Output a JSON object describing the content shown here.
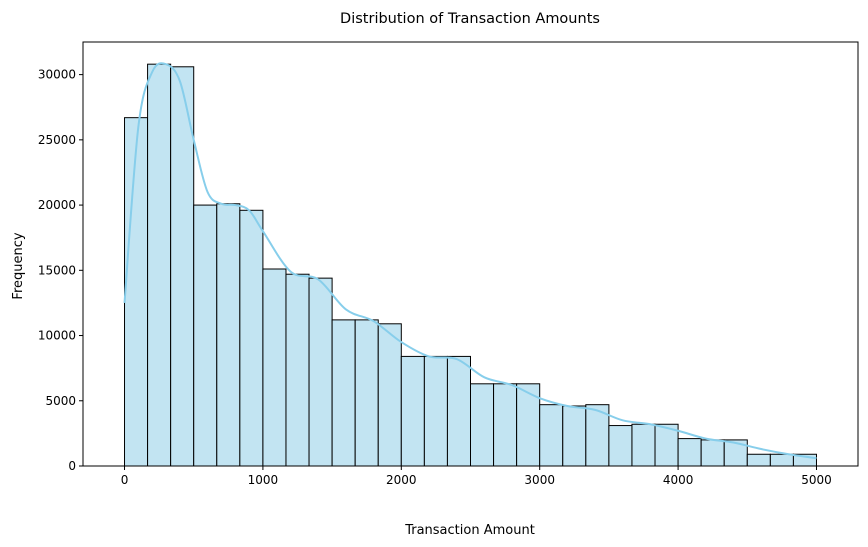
{
  "chart_data": {
    "type": "bar",
    "subtype": "histogram-with-kde",
    "title": "Distribution of Transaction Amounts",
    "xlabel": "Transaction Amount",
    "ylabel": "Frequency",
    "xlim": [
      -300,
      5300
    ],
    "ylim": [
      0,
      32500
    ],
    "x_ticks": [
      0,
      1000,
      2000,
      3000,
      4000,
      5000
    ],
    "y_ticks": [
      0,
      5000,
      10000,
      15000,
      20000,
      25000,
      30000
    ],
    "grid": false,
    "legend": "none",
    "bin_width": 166.67,
    "bin_edges": [
      0,
      166.67,
      333.33,
      500,
      666.67,
      833.33,
      1000,
      1166.67,
      1333.33,
      1500,
      1666.67,
      1833.33,
      2000,
      2166.67,
      2333.33,
      2500,
      2666.67,
      2833.33,
      3000,
      3166.67,
      3333.33,
      3500,
      3666.67,
      3833.33,
      4000,
      4166.67,
      4333.33,
      4500,
      4666.67,
      4833.33,
      5000
    ],
    "values": [
      26700,
      30800,
      30600,
      20000,
      20100,
      19600,
      15100,
      14700,
      14400,
      11200,
      11200,
      10900,
      8400,
      8400,
      8400,
      6300,
      6300,
      6300,
      4700,
      4600,
      4700,
      3100,
      3200,
      3200,
      2100,
      2000,
      2000,
      900,
      900,
      900
    ],
    "kde": {
      "x": [
        0,
        100,
        200,
        300,
        400,
        500,
        600,
        700,
        800,
        900,
        1000,
        1200,
        1400,
        1600,
        1800,
        2000,
        2200,
        2400,
        2600,
        2800,
        3000,
        3200,
        3400,
        3600,
        3800,
        4000,
        4200,
        4400,
        4600,
        4800,
        5000
      ],
      "y": [
        12500,
        26000,
        30200,
        30800,
        29500,
        25000,
        21000,
        20100,
        20000,
        19600,
        18000,
        14900,
        14300,
        12000,
        11100,
        9500,
        8400,
        8200,
        6800,
        6200,
        5200,
        4600,
        4300,
        3500,
        3200,
        2700,
        2100,
        1800,
        1300,
        900,
        600
      ]
    },
    "bar_fill": "#c2e4f2",
    "bar_edge": "#000000",
    "kde_color": "#87ceeb"
  }
}
